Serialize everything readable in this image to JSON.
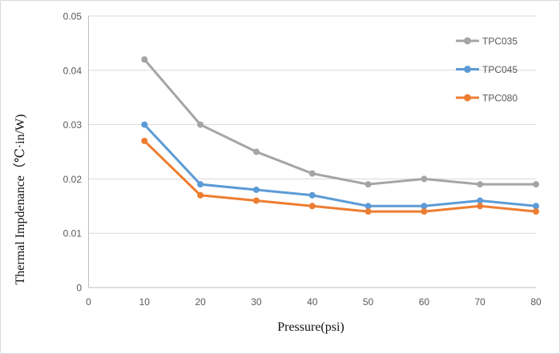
{
  "chart_data": {
    "type": "line",
    "title": "",
    "xlabel": "Pressure(psi)",
    "ylabel": "Thermal Impdenance（℃·in/W)",
    "x": [
      10,
      20,
      30,
      40,
      50,
      60,
      70,
      80
    ],
    "xlim": [
      0,
      80
    ],
    "ylim": [
      0,
      0.05
    ],
    "xticks": [
      {
        "label": "0",
        "value": 0
      },
      {
        "label": "10",
        "value": 10
      },
      {
        "label": "20",
        "value": 20
      },
      {
        "label": "30",
        "value": 30
      },
      {
        "label": "40",
        "value": 40
      },
      {
        "label": "50",
        "value": 50
      },
      {
        "label": "60",
        "value": 60
      },
      {
        "label": "70",
        "value": 70
      },
      {
        "label": "80",
        "value": 80
      }
    ],
    "yticks": [
      {
        "label": "0",
        "value": 0
      },
      {
        "label": "0.01",
        "value": 0.01
      },
      {
        "label": "0.02",
        "value": 0.02
      },
      {
        "label": "0.03",
        "value": 0.03
      },
      {
        "label": "0.04",
        "value": 0.04
      },
      {
        "label": "0.05",
        "value": 0.05
      }
    ],
    "grid": "horizontal",
    "legend_position": "top-right",
    "series": [
      {
        "name": "TPC035",
        "color": "#a5a5a5",
        "values": [
          0.042,
          0.03,
          0.025,
          0.021,
          0.019,
          0.02,
          0.019,
          0.019
        ]
      },
      {
        "name": "TPC045",
        "color": "#5b9bd5",
        "values": [
          0.03,
          0.019,
          0.018,
          0.017,
          0.015,
          0.015,
          0.016,
          0.015
        ]
      },
      {
        "name": "TPC080",
        "color": "#ed7d31",
        "values": [
          0.027,
          0.017,
          0.016,
          0.015,
          0.014,
          0.014,
          0.015,
          0.014
        ]
      }
    ]
  },
  "colors": {
    "gridline": "#d9d9d9",
    "axis_line": "#bfbfbf",
    "tick_text": "#595959",
    "background": "#ffffff",
    "border": "#d9d9d9"
  }
}
